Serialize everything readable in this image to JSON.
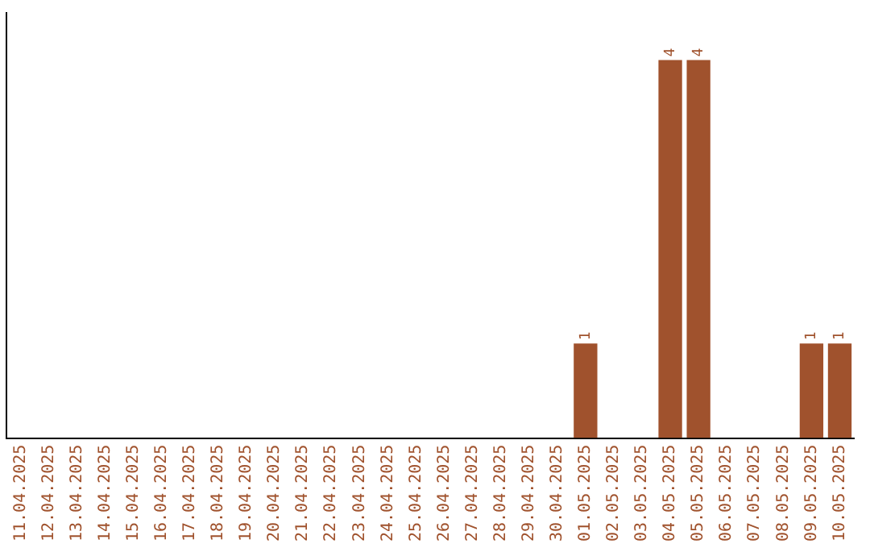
{
  "chart_data": {
    "type": "bar",
    "categories": [
      "11.04.2025",
      "12.04.2025",
      "13.04.2025",
      "14.04.2025",
      "15.04.2025",
      "16.04.2025",
      "17.04.2025",
      "18.04.2025",
      "19.04.2025",
      "20.04.2025",
      "21.04.2025",
      "22.04.2025",
      "23.04.2025",
      "24.04.2025",
      "25.04.2025",
      "26.04.2025",
      "27.04.2025",
      "28.04.2025",
      "29.04.2025",
      "30.04.2025",
      "01.05.2025",
      "02.05.2025",
      "03.05.2025",
      "04.05.2025",
      "05.05.2025",
      "06.05.2025",
      "07.05.2025",
      "08.05.2025",
      "09.05.2025",
      "10.05.2025"
    ],
    "values": [
      null,
      null,
      null,
      null,
      null,
      null,
      null,
      null,
      null,
      null,
      null,
      null,
      null,
      null,
      null,
      null,
      null,
      null,
      null,
      null,
      1,
      null,
      null,
      4,
      4,
      null,
      null,
      null,
      1,
      1
    ],
    "value_labels": [
      null,
      null,
      null,
      null,
      null,
      null,
      null,
      null,
      null,
      null,
      null,
      null,
      null,
      null,
      null,
      null,
      null,
      null,
      null,
      null,
      "1",
      null,
      null,
      "4",
      "4",
      null,
      null,
      null,
      "1",
      "1"
    ],
    "color": "#a0522d",
    "grid": false,
    "legend": false,
    "tick_labels": "x"
  }
}
